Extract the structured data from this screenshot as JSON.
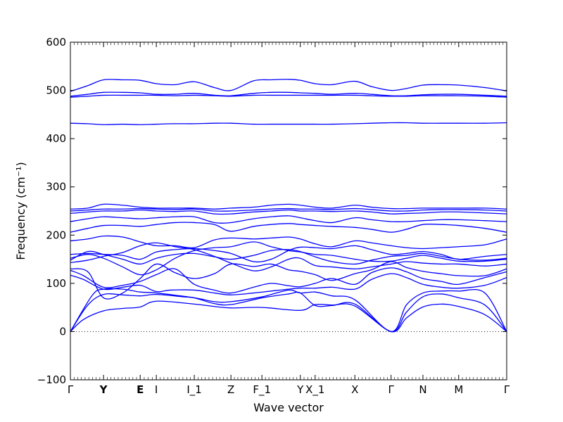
{
  "chart_data": {
    "type": "line",
    "title": "",
    "xlabel": "Wave vector",
    "ylabel": "Frequency (cm⁻¹)",
    "ylim": [
      -100,
      600
    ],
    "xlim": [
      0,
      1
    ],
    "grid": false,
    "yticks": [
      -100,
      0,
      100,
      200,
      300,
      400,
      500,
      600
    ],
    "yticklabels": [
      "−100",
      "0",
      "100",
      "200",
      "300",
      "400",
      "500",
      "600"
    ],
    "xticks": [
      {
        "label": "Γ",
        "pos": 0.0,
        "bold": false
      },
      {
        "label": "Y",
        "pos": 0.076,
        "bold": true
      },
      {
        "label": "E",
        "pos": 0.16,
        "bold": true
      },
      {
        "label": "I",
        "pos": 0.197,
        "bold": false
      },
      {
        "label": "I_1",
        "pos": 0.284,
        "bold": false
      },
      {
        "label": "Z",
        "pos": 0.368,
        "bold": false
      },
      {
        "label": "F_1",
        "pos": 0.439,
        "bold": false
      },
      {
        "label": "Y",
        "pos": 0.527,
        "bold": false
      },
      {
        "label": "X_1",
        "pos": 0.561,
        "bold": false
      },
      {
        "label": "X",
        "pos": 0.652,
        "bold": false
      },
      {
        "label": "Γ",
        "pos": 0.735,
        "bold": false
      },
      {
        "label": "N",
        "pos": 0.808,
        "bold": false
      },
      {
        "label": "M",
        "pos": 0.89,
        "bold": false
      },
      {
        "label": "Γ",
        "pos": 1.0,
        "bold": false
      }
    ],
    "zero_line": {
      "y": 0,
      "style": "dotted"
    },
    "color": "#0000ff",
    "series": [
      {
        "x": [
          0,
          0.03,
          0.076,
          0.12,
          0.16,
          0.197,
          0.284,
          0.33,
          0.368,
          0.439,
          0.527,
          0.561,
          0.6,
          0.652,
          0.735,
          0.77,
          0.808,
          0.85,
          0.89,
          0.95,
          1.0
        ],
        "y": [
          0,
          25,
          43,
          48,
          51,
          63,
          57,
          52,
          49,
          50,
          44,
          56,
          55,
          53,
          0,
          28,
          51,
          57,
          52,
          35,
          0
        ]
      },
      {
        "x": [
          0,
          0.04,
          0.076,
          0.12,
          0.16,
          0.197,
          0.26,
          0.284,
          0.33,
          0.368,
          0.44,
          0.5,
          0.527,
          0.561,
          0.6,
          0.652,
          0.735,
          0.77,
          0.808,
          0.85,
          0.89,
          0.95,
          1.0
        ],
        "y": [
          0,
          55,
          77,
          76,
          74,
          77,
          72,
          70,
          58,
          56,
          70,
          78,
          80,
          54,
          54,
          57,
          0,
          40,
          72,
          78,
          70,
          55,
          0
        ]
      },
      {
        "x": [
          0,
          0.05,
          0.076,
          0.12,
          0.16,
          0.197,
          0.284,
          0.33,
          0.368,
          0.439,
          0.5,
          0.527,
          0.561,
          0.6,
          0.652,
          0.735,
          0.77,
          0.808,
          0.85,
          0.89,
          0.95,
          1.0
        ],
        "y": [
          0,
          75,
          88,
          88,
          82,
          80,
          70,
          62,
          62,
          72,
          86,
          80,
          82,
          74,
          66,
          0,
          55,
          80,
          84,
          84,
          80,
          0
        ]
      },
      {
        "x": [
          0,
          0.03,
          0.076,
          0.12,
          0.16,
          0.197,
          0.23,
          0.284,
          0.33,
          0.368,
          0.42,
          0.46,
          0.5,
          0.527,
          0.561,
          0.6,
          0.652,
          0.69,
          0.735,
          0.77,
          0.808,
          0.85,
          0.89,
          0.95,
          1.0
        ],
        "y": [
          117,
          108,
          88,
          92,
          96,
          83,
          86,
          86,
          80,
          76,
          80,
          84,
          88,
          90,
          90,
          92,
          88,
          108,
          120,
          112,
          98,
          92,
          90,
          96,
          112
        ]
      },
      {
        "x": [
          0,
          0.03,
          0.076,
          0.12,
          0.16,
          0.197,
          0.24,
          0.284,
          0.33,
          0.368,
          0.42,
          0.46,
          0.5,
          0.527,
          0.561,
          0.6,
          0.652,
          0.69,
          0.735,
          0.77,
          0.808,
          0.85,
          0.89,
          0.95,
          1.0
        ],
        "y": [
          127,
          116,
          92,
          96,
          104,
          118,
          130,
          98,
          86,
          80,
          92,
          100,
          95,
          93,
          100,
          110,
          98,
          122,
          132,
          124,
          110,
          104,
          98,
          112,
          124
        ]
      },
      {
        "x": [
          0,
          0.04,
          0.076,
          0.12,
          0.16,
          0.197,
          0.24,
          0.284,
          0.33,
          0.368,
          0.42,
          0.46,
          0.5,
          0.527,
          0.561,
          0.6,
          0.652,
          0.69,
          0.735,
          0.77,
          0.808,
          0.85,
          0.89,
          0.95,
          1.0
        ],
        "y": [
          130,
          124,
          70,
          80,
          110,
          140,
          122,
          110,
          120,
          140,
          135,
          140,
          128,
          125,
          118,
          106,
          120,
          128,
          145,
          133,
          125,
          120,
          116,
          116,
          130
        ]
      },
      {
        "x": [
          0,
          0.04,
          0.076,
          0.12,
          0.16,
          0.197,
          0.24,
          0.284,
          0.33,
          0.368,
          0.42,
          0.46,
          0.5,
          0.527,
          0.561,
          0.6,
          0.652,
          0.69,
          0.735,
          0.77,
          0.808,
          0.85,
          0.89,
          0.95,
          1.0
        ],
        "y": [
          143,
          148,
          156,
          164,
          178,
          184,
          176,
          170,
          156,
          142,
          126,
          134,
          150,
          152,
          137,
          134,
          130,
          134,
          140,
          145,
          142,
          140,
          140,
          136,
          140
        ]
      },
      {
        "x": [
          0,
          0.04,
          0.076,
          0.12,
          0.16,
          0.197,
          0.24,
          0.284,
          0.33,
          0.368,
          0.42,
          0.46,
          0.5,
          0.527,
          0.561,
          0.6,
          0.652,
          0.69,
          0.735,
          0.77,
          0.808,
          0.85,
          0.89,
          0.95,
          1.0
        ],
        "y": [
          152,
          160,
          152,
          134,
          118,
          128,
          152,
          168,
          174,
          176,
          186,
          176,
          168,
          165,
          160,
          158,
          150,
          146,
          146,
          152,
          158,
          152,
          146,
          146,
          150
        ]
      },
      {
        "x": [
          0,
          0.04,
          0.076,
          0.12,
          0.16,
          0.197,
          0.24,
          0.284,
          0.33,
          0.368,
          0.42,
          0.46,
          0.5,
          0.527,
          0.561,
          0.6,
          0.652,
          0.69,
          0.735,
          0.77,
          0.808,
          0.85,
          0.89,
          0.95,
          1.0
        ],
        "y": [
          148,
          166,
          160,
          150,
          140,
          152,
          160,
          162,
          155,
          150,
          158,
          168,
          170,
          166,
          155,
          145,
          140,
          148,
          156,
          158,
          162,
          156,
          150,
          148,
          152
        ]
      },
      {
        "x": [
          0,
          0.04,
          0.076,
          0.12,
          0.16,
          0.197,
          0.24,
          0.284,
          0.33,
          0.368,
          0.42,
          0.46,
          0.5,
          0.527,
          0.561,
          0.6,
          0.652,
          0.69,
          0.735,
          0.77,
          0.808,
          0.85,
          0.89,
          0.95,
          1.0
        ],
        "y": [
          160,
          162,
          160,
          158,
          150,
          165,
          170,
          172,
          168,
          162,
          145,
          150,
          168,
          175,
          174,
          172,
          178,
          170,
          160,
          162,
          166,
          160,
          150,
          156,
          160
        ]
      },
      {
        "x": [
          0,
          0.04,
          0.076,
          0.12,
          0.16,
          0.197,
          0.24,
          0.284,
          0.33,
          0.368,
          0.42,
          0.46,
          0.5,
          0.527,
          0.561,
          0.6,
          0.652,
          0.69,
          0.735,
          0.77,
          0.808,
          0.85,
          0.89,
          0.95,
          1.0
        ],
        "y": [
          188,
          192,
          198,
          196,
          186,
          178,
          178,
          174,
          190,
          194,
          192,
          194,
          196,
          192,
          182,
          176,
          188,
          184,
          178,
          174,
          172,
          174,
          176,
          180,
          192
        ]
      },
      {
        "x": [
          0,
          0.04,
          0.076,
          0.12,
          0.16,
          0.197,
          0.24,
          0.284,
          0.33,
          0.368,
          0.42,
          0.46,
          0.5,
          0.527,
          0.561,
          0.6,
          0.652,
          0.69,
          0.735,
          0.77,
          0.808,
          0.85,
          0.89,
          0.95,
          1.0
        ],
        "y": [
          206,
          214,
          220,
          220,
          218,
          222,
          226,
          226,
          222,
          208,
          218,
          222,
          224,
          222,
          220,
          218,
          216,
          212,
          206,
          212,
          222,
          222,
          220,
          214,
          206
        ]
      },
      {
        "x": [
          0,
          0.04,
          0.076,
          0.12,
          0.16,
          0.197,
          0.24,
          0.284,
          0.33,
          0.368,
          0.42,
          0.46,
          0.5,
          0.527,
          0.561,
          0.6,
          0.652,
          0.69,
          0.735,
          0.77,
          0.808,
          0.85,
          0.89,
          0.95,
          1.0
        ],
        "y": [
          228,
          234,
          238,
          236,
          234,
          236,
          238,
          238,
          226,
          226,
          234,
          238,
          240,
          236,
          230,
          226,
          236,
          232,
          228,
          228,
          230,
          232,
          232,
          230,
          228
        ]
      },
      {
        "x": [
          0,
          0.04,
          0.076,
          0.12,
          0.16,
          0.197,
          0.24,
          0.284,
          0.33,
          0.368,
          0.42,
          0.46,
          0.5,
          0.527,
          0.561,
          0.6,
          0.652,
          0.69,
          0.735,
          0.77,
          0.808,
          0.85,
          0.89,
          0.95,
          1.0
        ],
        "y": [
          245,
          248,
          250,
          250,
          252,
          250,
          249,
          250,
          244,
          244,
          248,
          250,
          252,
          250,
          250,
          249,
          250,
          248,
          244,
          245,
          246,
          248,
          248,
          246,
          244
        ]
      },
      {
        "x": [
          0,
          0.04,
          0.076,
          0.12,
          0.16,
          0.197,
          0.24,
          0.284,
          0.33,
          0.368,
          0.42,
          0.46,
          0.5,
          0.527,
          0.561,
          0.6,
          0.652,
          0.69,
          0.735,
          0.77,
          0.808,
          0.85,
          0.89,
          0.95,
          1.0
        ],
        "y": [
          250,
          252,
          254,
          254,
          255,
          254,
          253,
          254,
          250,
          250,
          252,
          254,
          255,
          254,
          254,
          253,
          255,
          253,
          250,
          250,
          252,
          253,
          253,
          252,
          250
        ]
      },
      {
        "x": [
          0,
          0.04,
          0.076,
          0.12,
          0.16,
          0.197,
          0.24,
          0.284,
          0.33,
          0.368,
          0.42,
          0.46,
          0.5,
          0.527,
          0.561,
          0.6,
          0.652,
          0.69,
          0.735,
          0.77,
          0.808,
          0.85,
          0.89,
          0.95,
          1.0
        ],
        "y": [
          254,
          256,
          264,
          262,
          258,
          256,
          256,
          256,
          254,
          256,
          258,
          262,
          264,
          262,
          258,
          256,
          262,
          258,
          255,
          255,
          256,
          256,
          256,
          256,
          254
        ]
      },
      {
        "x": [
          0,
          0.04,
          0.076,
          0.12,
          0.16,
          0.197,
          0.24,
          0.284,
          0.33,
          0.368,
          0.42,
          0.46,
          0.5,
          0.527,
          0.561,
          0.6,
          0.652,
          0.69,
          0.735,
          0.77,
          0.808,
          0.85,
          0.89,
          0.95,
          1.0
        ],
        "y": [
          432,
          431,
          429,
          430,
          429,
          430,
          431,
          431,
          432,
          432,
          430,
          430,
          430,
          430,
          430,
          430,
          431,
          432,
          433,
          433,
          432,
          432,
          432,
          432,
          433
        ]
      },
      {
        "x": [
          0,
          0.04,
          0.076,
          0.12,
          0.16,
          0.197,
          0.24,
          0.284,
          0.33,
          0.368,
          0.42,
          0.46,
          0.5,
          0.527,
          0.561,
          0.6,
          0.652,
          0.69,
          0.735,
          0.77,
          0.808,
          0.85,
          0.89,
          0.95,
          1.0
        ],
        "y": [
          486,
          488,
          490,
          490,
          490,
          490,
          489,
          490,
          489,
          488,
          490,
          490,
          490,
          490,
          490,
          490,
          490,
          489,
          488,
          488,
          489,
          489,
          489,
          488,
          486
        ]
      },
      {
        "x": [
          0,
          0.04,
          0.076,
          0.12,
          0.16,
          0.197,
          0.24,
          0.284,
          0.33,
          0.368,
          0.42,
          0.46,
          0.5,
          0.527,
          0.561,
          0.6,
          0.652,
          0.69,
          0.735,
          0.77,
          0.808,
          0.85,
          0.89,
          0.95,
          1.0
        ],
        "y": [
          488,
          492,
          496,
          496,
          495,
          492,
          492,
          494,
          490,
          489,
          494,
          496,
          496,
          495,
          494,
          492,
          494,
          492,
          489,
          489,
          491,
          492,
          492,
          490,
          488
        ]
      },
      {
        "x": [
          0,
          0.04,
          0.076,
          0.12,
          0.16,
          0.197,
          0.24,
          0.284,
          0.33,
          0.368,
          0.42,
          0.46,
          0.5,
          0.527,
          0.561,
          0.6,
          0.652,
          0.69,
          0.735,
          0.77,
          0.808,
          0.85,
          0.89,
          0.95,
          1.0
        ],
        "y": [
          498,
          510,
          522,
          522,
          521,
          514,
          512,
          518,
          506,
          500,
          520,
          522,
          523,
          521,
          514,
          512,
          519,
          508,
          500,
          504,
          511,
          512,
          511,
          506,
          499
        ]
      }
    ]
  }
}
